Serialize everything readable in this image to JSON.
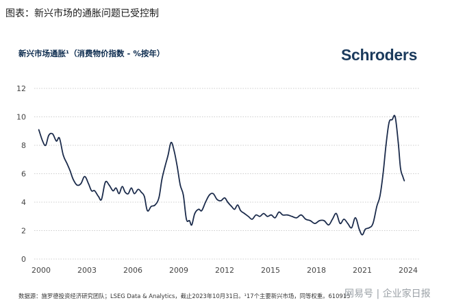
{
  "figure_caption": "图表：新兴市场的通胀问题已受控制",
  "logo_text": "Schroders",
  "footnote": "数据源：施罗德投资经济研究团队；LSEG Data & Analytics，截止2023年10月31日。¹17个主要新兴市场，同等权重。610915",
  "watermark": "网易号 | 企业家日报",
  "colors": {
    "line": "#1b2b4b",
    "title": "#0c2b4e",
    "grid": "#bcbcbc"
  },
  "chart_data": {
    "type": "line",
    "title": "新兴市场通胀¹（消费物价指数 - %按年）",
    "xlabel": "",
    "ylabel": "",
    "xlim": [
      2000,
      2024.5
    ],
    "ylim": [
      0,
      12
    ],
    "yticks": [
      0,
      2,
      4,
      6,
      8,
      10,
      12
    ],
    "xticks": [
      2000,
      2003,
      2006,
      2009,
      2012,
      2015,
      2018,
      2021,
      2024
    ],
    "grid": "horizontal",
    "series": [
      {
        "name": "",
        "x": [
          1999.85,
          2000.1,
          2000.3,
          2000.5,
          2000.75,
          2001.0,
          2001.2,
          2001.45,
          2001.7,
          2001.9,
          2002.1,
          2002.35,
          2002.6,
          2002.85,
          2003.1,
          2003.3,
          2003.5,
          2003.75,
          2003.95,
          2004.2,
          2004.45,
          2004.7,
          2004.9,
          2005.1,
          2005.3,
          2005.5,
          2005.7,
          2005.9,
          2006.1,
          2006.35,
          2006.55,
          2006.75,
          2006.95,
          2007.2,
          2007.45,
          2007.7,
          2007.9,
          2008.1,
          2008.3,
          2008.5,
          2008.7,
          2008.9,
          2009.1,
          2009.3,
          2009.5,
          2009.7,
          2009.85,
          2010.05,
          2010.3,
          2010.5,
          2010.75,
          2011.0,
          2011.25,
          2011.5,
          2011.75,
          2012.0,
          2012.2,
          2012.45,
          2012.65,
          2012.85,
          2013.05,
          2013.3,
          2013.55,
          2013.8,
          2014.05,
          2014.3,
          2014.55,
          2014.8,
          2015.05,
          2015.3,
          2015.55,
          2015.8,
          2016.1,
          2016.4,
          2016.7,
          2017.0,
          2017.3,
          2017.6,
          2017.9,
          2018.2,
          2018.5,
          2018.8,
          2019.05,
          2019.3,
          2019.55,
          2019.8,
          2020.05,
          2020.3,
          2020.55,
          2020.8,
          2021.0,
          2021.2,
          2021.45,
          2021.7,
          2021.95,
          2022.15,
          2022.35,
          2022.55,
          2022.75,
          2022.95,
          2023.15,
          2023.35,
          2023.5,
          2023.65,
          2023.75
        ],
        "values": [
          9.1,
          8.3,
          8.0,
          8.7,
          8.8,
          8.3,
          8.5,
          7.3,
          6.7,
          6.2,
          5.6,
          5.2,
          5.3,
          5.8,
          5.3,
          4.8,
          4.8,
          4.4,
          4.2,
          5.4,
          5.2,
          4.8,
          5.0,
          4.6,
          5.1,
          4.7,
          4.6,
          5.0,
          4.6,
          4.9,
          4.7,
          4.4,
          3.4,
          3.7,
          3.8,
          4.3,
          5.6,
          6.5,
          7.3,
          8.2,
          7.6,
          6.5,
          5.2,
          4.5,
          2.8,
          2.7,
          2.4,
          3.2,
          3.5,
          3.4,
          4.0,
          4.5,
          4.6,
          4.2,
          4.1,
          4.3,
          4.0,
          3.7,
          3.5,
          3.8,
          3.4,
          3.2,
          3.0,
          2.8,
          3.1,
          3.0,
          3.2,
          3.0,
          3.1,
          2.9,
          3.3,
          3.1,
          3.1,
          3.0,
          2.9,
          3.1,
          2.8,
          2.7,
          2.5,
          2.7,
          2.7,
          2.4,
          2.8,
          3.2,
          2.5,
          2.8,
          2.5,
          2.2,
          2.9,
          2.1,
          1.7,
          2.1,
          2.2,
          2.5,
          3.7,
          4.4,
          5.9,
          8.0,
          9.6,
          9.8,
          10.0,
          8.2,
          6.4,
          5.8,
          5.5
        ]
      }
    ]
  }
}
